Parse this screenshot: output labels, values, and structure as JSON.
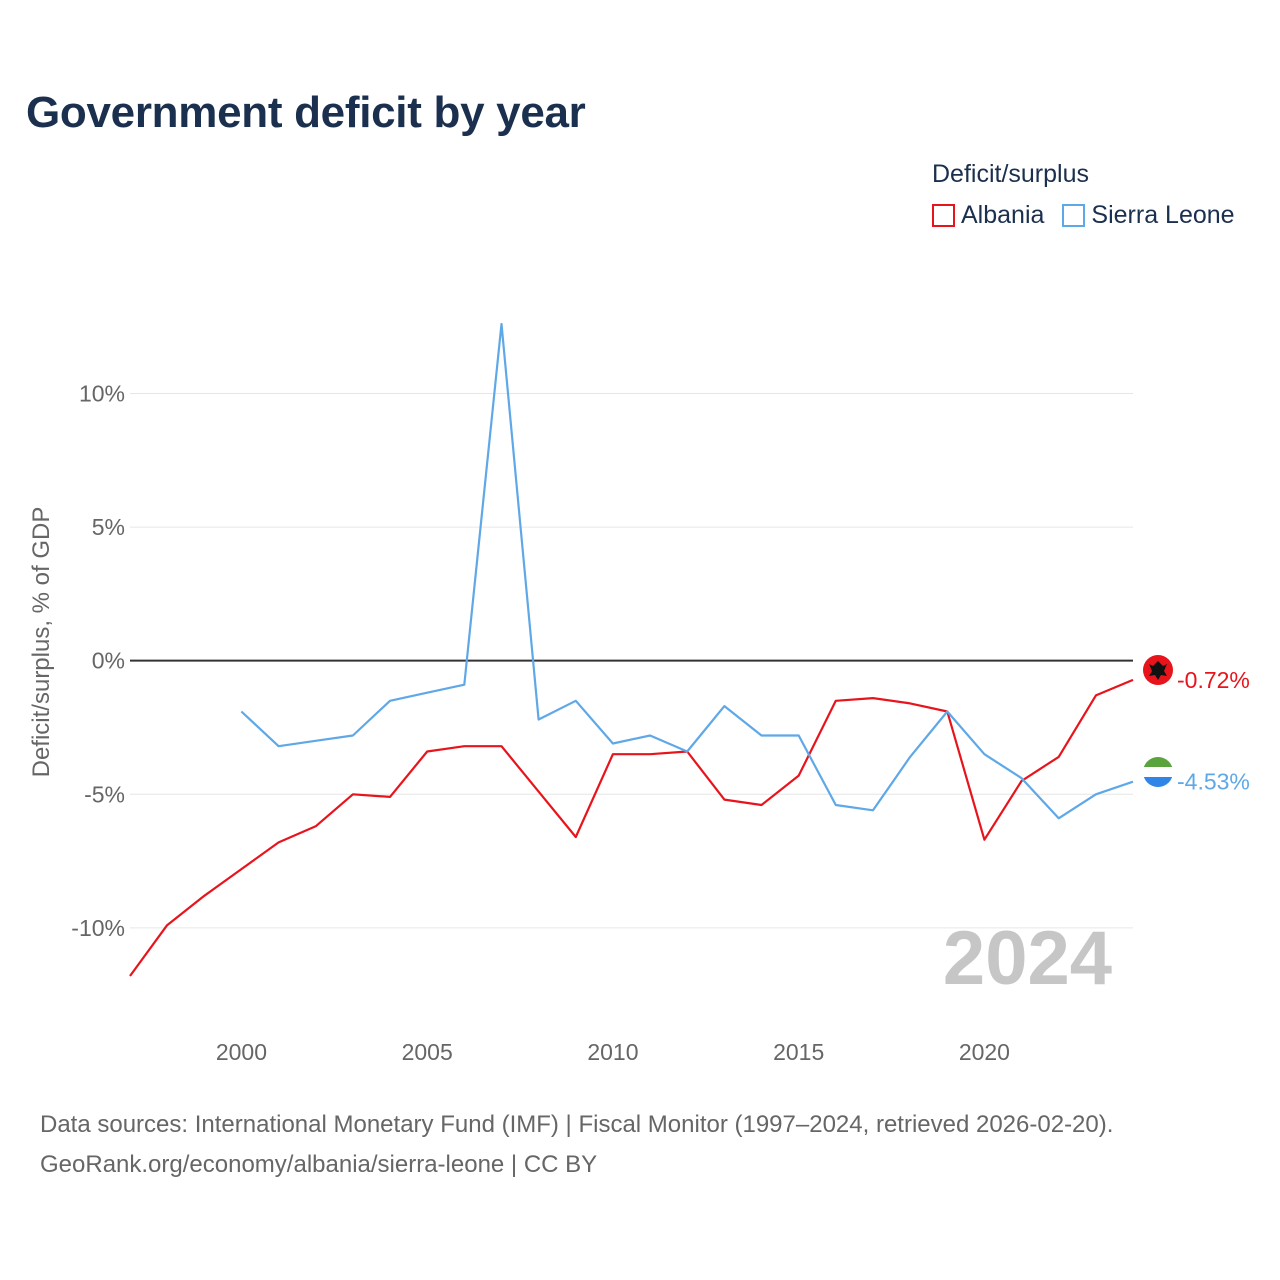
{
  "page": {
    "title": "Government deficit by year",
    "source_line1": "Data sources: International Monetary Fund (IMF) | Fiscal Monitor (1997–2024, retrieved 2026-02-20).",
    "source_line2": "GeoRank.org/economy/albania/sierra-leone | CC BY"
  },
  "legend": {
    "title": "Deficit/surplus",
    "items": [
      {
        "label": "Albania",
        "color": "#e8141c"
      },
      {
        "label": "Sierra Leone",
        "color": "#5fa8e8"
      }
    ]
  },
  "chart_data": {
    "type": "line",
    "title": "Government deficit by year",
    "xlabel": "",
    "ylabel": "Deficit/surplus, % of GDP",
    "xlim": [
      1997,
      2024
    ],
    "ylim": [
      -12.7,
      13.5
    ],
    "x_ticks": [
      2000,
      2005,
      2010,
      2015,
      2020
    ],
    "y_ticks": [
      10,
      5,
      0,
      -5,
      -10
    ],
    "y_tick_labels": [
      "10%",
      "5%",
      "0%",
      "-5%",
      "-10%"
    ],
    "zero_line": true,
    "watermark_year": "2024",
    "series": [
      {
        "name": "Albania",
        "color": "#e8141c",
        "icon": "albania-flag-icon",
        "end_label": "-0.72%",
        "x": [
          1997,
          1998,
          1999,
          2000,
          2001,
          2002,
          2003,
          2004,
          2005,
          2006,
          2007,
          2008,
          2009,
          2010,
          2011,
          2012,
          2013,
          2014,
          2015,
          2016,
          2017,
          2018,
          2019,
          2020,
          2021,
          2022,
          2023,
          2024
        ],
        "values": [
          -11.8,
          -9.9,
          -8.8,
          -7.8,
          -6.8,
          -6.2,
          -5.0,
          -5.1,
          -3.4,
          -3.2,
          -3.2,
          -4.9,
          -6.6,
          -3.5,
          -3.5,
          -3.4,
          -5.2,
          -5.4,
          -4.3,
          -1.5,
          -1.4,
          -1.6,
          -1.9,
          -6.7,
          -4.5,
          -3.6,
          -1.3,
          -0.72
        ]
      },
      {
        "name": "Sierra Leone",
        "color": "#5fa8e8",
        "icon": "sierra-leone-flag-icon",
        "end_label": "-4.53%",
        "x": [
          2000,
          2001,
          2002,
          2003,
          2004,
          2005,
          2006,
          2007,
          2008,
          2009,
          2010,
          2011,
          2012,
          2013,
          2014,
          2015,
          2016,
          2017,
          2018,
          2019,
          2020,
          2021,
          2022,
          2023,
          2024
        ],
        "values": [
          -1.9,
          -3.2,
          -3.0,
          -2.8,
          -1.5,
          -1.2,
          -0.9,
          12.6,
          -2.2,
          -1.5,
          -3.1,
          -2.8,
          -3.4,
          -1.7,
          -2.8,
          -2.8,
          -5.4,
          -5.6,
          -3.6,
          -1.9,
          -3.5,
          -4.4,
          -5.9,
          -5.0,
          -4.53
        ]
      }
    ]
  }
}
